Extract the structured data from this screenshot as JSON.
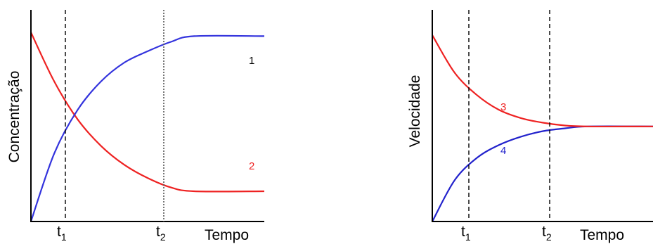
{
  "chart_data": [
    {
      "type": "line",
      "ylabel": "Concentração",
      "xlabel": "Tempo",
      "ticks": [
        {
          "t": "t",
          "sub": "1"
        },
        {
          "t": "t",
          "sub": "2"
        }
      ],
      "series": [
        {
          "name": "1",
          "color": "#3333dd",
          "x": [
            0,
            0.1,
            0.2,
            0.3,
            0.4,
            0.5,
            0.6,
            0.7,
            1.0
          ],
          "y": [
            0,
            0.36,
            0.59,
            0.74,
            0.84,
            0.9,
            0.95,
            0.98,
            0.98
          ]
        },
        {
          "name": "2",
          "color": "#ee2222",
          "x": [
            0,
            0.1,
            0.2,
            0.3,
            0.4,
            0.5,
            0.6,
            0.7,
            1.0
          ],
          "y": [
            1.0,
            0.74,
            0.54,
            0.4,
            0.3,
            0.23,
            0.18,
            0.16,
            0.16
          ]
        }
      ]
    },
    {
      "type": "line",
      "ylabel": "Velocidade",
      "xlabel": "Tempo",
      "ticks": [
        {
          "t": "t",
          "sub": "1"
        },
        {
          "t": "t",
          "sub": "2"
        }
      ],
      "series": [
        {
          "name": "3",
          "color": "#ee2222",
          "x": [
            0,
            0.1,
            0.2,
            0.3,
            0.4,
            0.5,
            0.6,
            0.7,
            1.0
          ],
          "y": [
            1.0,
            0.8,
            0.68,
            0.6,
            0.555,
            0.53,
            0.515,
            0.51,
            0.51
          ]
        },
        {
          "name": "4",
          "color": "#2222cc",
          "x": [
            0,
            0.1,
            0.2,
            0.3,
            0.4,
            0.5,
            0.6,
            0.7,
            1.0
          ],
          "y": [
            0,
            0.22,
            0.34,
            0.41,
            0.455,
            0.485,
            0.5,
            0.51,
            0.51
          ]
        }
      ]
    }
  ]
}
